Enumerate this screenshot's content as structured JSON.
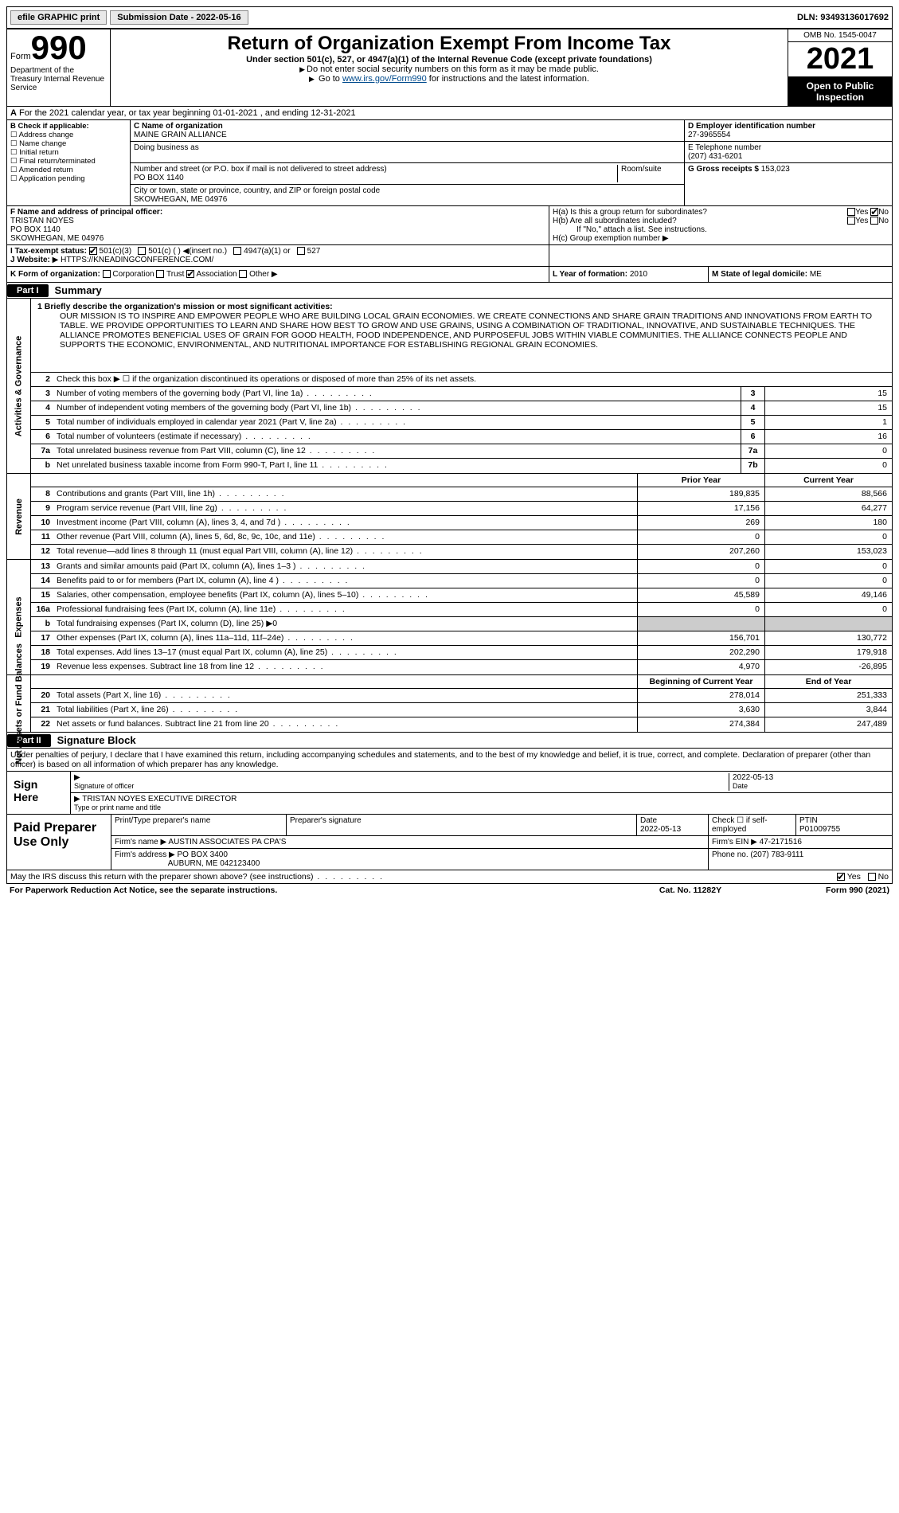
{
  "topbar": {
    "efile": "efile GRAPHIC print",
    "submission_label": "Submission Date - 2022-05-16",
    "dln": "DLN: 93493136017692"
  },
  "header": {
    "form_label": "Form",
    "form_number": "990",
    "dept": "Department of the Treasury\nInternal Revenue Service",
    "title": "Return of Organization Exempt From Income Tax",
    "subtitle": "Under section 501(c), 527, or 4947(a)(1) of the Internal Revenue Code (except private foundations)",
    "note1": "Do not enter social security numbers on this form as it may be made public.",
    "note2_prefix": "Go to ",
    "note2_link": "www.irs.gov/Form990",
    "note2_suffix": " for instructions and the latest information.",
    "omb": "OMB No. 1545-0047",
    "year": "2021",
    "open": "Open to Public Inspection"
  },
  "row_a": {
    "label_a": "A",
    "text": "For the 2021 calendar year, or tax year beginning 01-01-2021   , and ending 12-31-2021"
  },
  "section_b": {
    "label": "B Check if applicable:",
    "items": [
      "Address change",
      "Name change",
      "Initial return",
      "Final return/terminated",
      "Amended return",
      "Application pending"
    ]
  },
  "section_c": {
    "name_label": "C Name of organization",
    "name": "MAINE GRAIN ALLIANCE",
    "dba_label": "Doing business as",
    "dba": "",
    "addr_label": "Number and street (or P.O. box if mail is not delivered to street address)",
    "room_label": "Room/suite",
    "addr": "PO BOX 1140",
    "city_label": "City or town, state or province, country, and ZIP or foreign postal code",
    "city": "SKOWHEGAN, ME  04976"
  },
  "section_d": {
    "label": "D Employer identification number",
    "value": "27-3965554"
  },
  "section_e": {
    "label": "E Telephone number",
    "value": "(207) 431-6201"
  },
  "section_g": {
    "label": "G Gross receipts $",
    "value": "153,023"
  },
  "section_f": {
    "label": "F  Name and address of principal officer:",
    "name": "TRISTAN NOYES",
    "addr1": "PO BOX 1140",
    "addr2": "SKOWHEGAN, ME  04976"
  },
  "section_h": {
    "ha_label": "H(a)  Is this a group return for subordinates?",
    "hb_label": "H(b)  Are all subordinates included?",
    "hb_note": "If \"No,\" attach a list. See instructions.",
    "hc_label": "H(c)  Group exemption number",
    "yes": "Yes",
    "no": "No"
  },
  "row_i": {
    "label": "I   Tax-exempt status:",
    "opt1": "501(c)(3)",
    "opt2": "501(c) (  )",
    "opt2_note": "(insert no.)",
    "opt3": "4947(a)(1) or",
    "opt4": "527"
  },
  "row_j": {
    "label": "J   Website:",
    "value": "HTTPS://KNEADINGCONFERENCE.COM/"
  },
  "row_k": {
    "label": "K Form of organization:",
    "opts": [
      "Corporation",
      "Trust",
      "Association",
      "Other"
    ],
    "checked_idx": 2,
    "l_label": "L  Year of formation:",
    "l_value": "2010",
    "m_label": "M State of legal domicile:",
    "m_value": "ME"
  },
  "part1": {
    "hdr": "Part I",
    "title": "Summary"
  },
  "summary": {
    "mission_label": "1   Briefly describe the organization's mission or most significant activities:",
    "mission": "OUR MISSION IS TO INSPIRE AND EMPOWER PEOPLE WHO ARE BUILDING LOCAL GRAIN ECONOMIES. WE CREATE CONNECTIONS AND SHARE GRAIN TRADITIONS AND INNOVATIONS FROM EARTH TO TABLE. WE PROVIDE OPPORTUNITIES TO LEARN AND SHARE HOW BEST TO GROW AND USE GRAINS, USING A COMBINATION OF TRADITIONAL, INNOVATIVE, AND SUSTAINABLE TECHNIQUES. THE ALLIANCE PROMOTES BENEFICIAL USES OF GRAIN FOR GOOD HEALTH, FOOD INDEPENDENCE, AND PURPOSEFUL JOBS WITHIN VIABLE COMMUNITIES. THE ALLIANCE CONNECTS PEOPLE AND SUPPORTS THE ECONOMIC, ENVIRONMENTAL, AND NUTRITIONAL IMPORTANCE FOR ESTABLISHING REGIONAL GRAIN ECONOMIES.",
    "line2": "Check this box ▶ ☐ if the organization discontinued its operations or disposed of more than 25% of its net assets.",
    "sections": {
      "gov": "Activities & Governance",
      "rev": "Revenue",
      "exp": "Expenses",
      "net": "Net Assets or Fund Balances"
    },
    "col_hdrs": {
      "prior": "Prior Year",
      "current": "Current Year",
      "begin": "Beginning of Current Year",
      "end": "End of Year"
    },
    "rows_gov": [
      {
        "n": "3",
        "d": "Number of voting members of the governing body (Part VI, line 1a)",
        "box": "3",
        "v": "15"
      },
      {
        "n": "4",
        "d": "Number of independent voting members of the governing body (Part VI, line 1b)",
        "box": "4",
        "v": "15"
      },
      {
        "n": "5",
        "d": "Total number of individuals employed in calendar year 2021 (Part V, line 2a)",
        "box": "5",
        "v": "1"
      },
      {
        "n": "6",
        "d": "Total number of volunteers (estimate if necessary)",
        "box": "6",
        "v": "16"
      },
      {
        "n": "7a",
        "d": "Total unrelated business revenue from Part VIII, column (C), line 12",
        "box": "7a",
        "v": "0"
      },
      {
        "n": "b",
        "d": "Net unrelated business taxable income from Form 990-T, Part I, line 11",
        "box": "7b",
        "v": "0"
      }
    ],
    "rows_rev": [
      {
        "n": "8",
        "d": "Contributions and grants (Part VIII, line 1h)",
        "p": "189,835",
        "c": "88,566"
      },
      {
        "n": "9",
        "d": "Program service revenue (Part VIII, line 2g)",
        "p": "17,156",
        "c": "64,277"
      },
      {
        "n": "10",
        "d": "Investment income (Part VIII, column (A), lines 3, 4, and 7d )",
        "p": "269",
        "c": "180"
      },
      {
        "n": "11",
        "d": "Other revenue (Part VIII, column (A), lines 5, 6d, 8c, 9c, 10c, and 11e)",
        "p": "0",
        "c": "0"
      },
      {
        "n": "12",
        "d": "Total revenue—add lines 8 through 11 (must equal Part VIII, column (A), line 12)",
        "p": "207,260",
        "c": "153,023"
      }
    ],
    "rows_exp": [
      {
        "n": "13",
        "d": "Grants and similar amounts paid (Part IX, column (A), lines 1–3 )",
        "p": "0",
        "c": "0"
      },
      {
        "n": "14",
        "d": "Benefits paid to or for members (Part IX, column (A), line 4 )",
        "p": "0",
        "c": "0"
      },
      {
        "n": "15",
        "d": "Salaries, other compensation, employee benefits (Part IX, column (A), lines 5–10)",
        "p": "45,589",
        "c": "49,146"
      },
      {
        "n": "16a",
        "d": "Professional fundraising fees (Part IX, column (A), line 11e)",
        "p": "0",
        "c": "0"
      },
      {
        "n": "b",
        "d": "Total fundraising expenses (Part IX, column (D), line 25) ▶0",
        "shaded": true
      },
      {
        "n": "17",
        "d": "Other expenses (Part IX, column (A), lines 11a–11d, 11f–24e)",
        "p": "156,701",
        "c": "130,772"
      },
      {
        "n": "18",
        "d": "Total expenses. Add lines 13–17 (must equal Part IX, column (A), line 25)",
        "p": "202,290",
        "c": "179,918"
      },
      {
        "n": "19",
        "d": "Revenue less expenses. Subtract line 18 from line 12",
        "p": "4,970",
        "c": "-26,895"
      }
    ],
    "rows_net": [
      {
        "n": "20",
        "d": "Total assets (Part X, line 16)",
        "p": "278,014",
        "c": "251,333"
      },
      {
        "n": "21",
        "d": "Total liabilities (Part X, line 26)",
        "p": "3,630",
        "c": "3,844"
      },
      {
        "n": "22",
        "d": "Net assets or fund balances. Subtract line 21 from line 20",
        "p": "274,384",
        "c": "247,489"
      }
    ]
  },
  "part2": {
    "hdr": "Part II",
    "title": "Signature Block"
  },
  "signature": {
    "declare": "Under penalties of perjury, I declare that I have examined this return, including accompanying schedules and statements, and to the best of my knowledge and belief, it is true, correct, and complete. Declaration of preparer (other than officer) is based on all information of which preparer has any knowledge.",
    "sign_here": "Sign Here",
    "sig_label": "Signature of officer",
    "date_label": "Date",
    "date": "2022-05-13",
    "name": "TRISTAN NOYES  EXECUTIVE DIRECTOR",
    "name_label": "Type or print name and title"
  },
  "paid": {
    "label": "Paid Preparer Use Only",
    "cols": {
      "name_label": "Print/Type preparer's name",
      "sig_label": "Preparer's signature",
      "date_label": "Date",
      "date": "2022-05-13",
      "check_label": "Check ☐ if self-employed",
      "ptin_label": "PTIN",
      "ptin": "P01009755"
    },
    "firm_name_label": "Firm's name    ▶",
    "firm_name": "AUSTIN ASSOCIATES PA CPA'S",
    "firm_ein_label": "Firm's EIN ▶",
    "firm_ein": "47-2171516",
    "firm_addr_label": "Firm's address ▶",
    "firm_addr": "PO BOX 3400",
    "firm_city": "AUBURN, ME  042123400",
    "phone_label": "Phone no.",
    "phone": "(207) 783-9111"
  },
  "footer": {
    "discuss": "May the IRS discuss this return with the preparer shown above? (see instructions)",
    "yes": "Yes",
    "no": "No",
    "paperwork": "For Paperwork Reduction Act Notice, see the separate instructions.",
    "cat": "Cat. No. 11282Y",
    "form": "Form 990 (2021)"
  }
}
